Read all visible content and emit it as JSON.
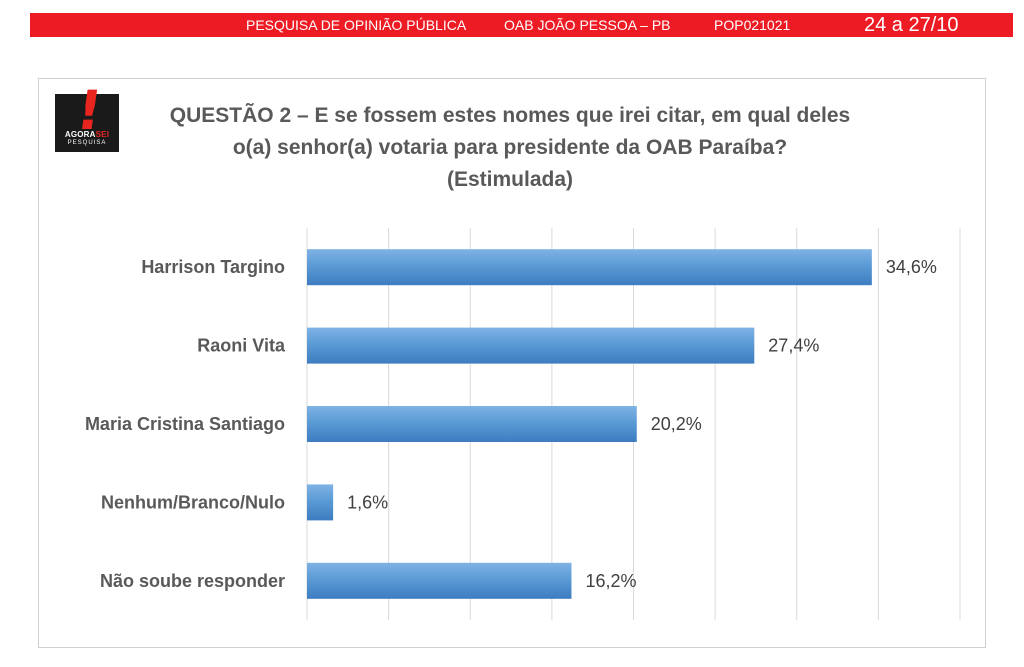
{
  "header": {
    "survey_label": "PESQUISA DE OPINIÃO PÚBLICA",
    "location": "OAB JOÃO PESSOA – PB",
    "code": "POP021021",
    "dates": "24 a 27/10"
  },
  "logo": {
    "brand_agora": "AGORA",
    "brand_sei": "SEI",
    "brand_sub": "PESQUISA"
  },
  "title": {
    "line1": "QUESTÃO 2 – E se fossem estes nomes que irei citar, em qual deles",
    "line2": "o(a) senhor(a) votaria para presidente da OAB Paraíba?",
    "line3": "(Estimulada)"
  },
  "colors": {
    "header_bar": "#ed1c24",
    "bar_fill": "#5b9bd5",
    "bar_dark": "#3d7cc0"
  },
  "chart_data": {
    "type": "bar",
    "orientation": "horizontal",
    "categories": [
      "Harrison Targino",
      "Raoni Vita",
      "Maria Cristina Santiago",
      "Nenhum/Branco/Nulo",
      "Não soube responder"
    ],
    "values": [
      34.6,
      27.4,
      20.2,
      1.6,
      16.2
    ],
    "value_labels": [
      "34,6%",
      "27,4%",
      "20,2%",
      "1,6%",
      "16,2%"
    ],
    "xlim": [
      0,
      40
    ],
    "grid": true
  }
}
